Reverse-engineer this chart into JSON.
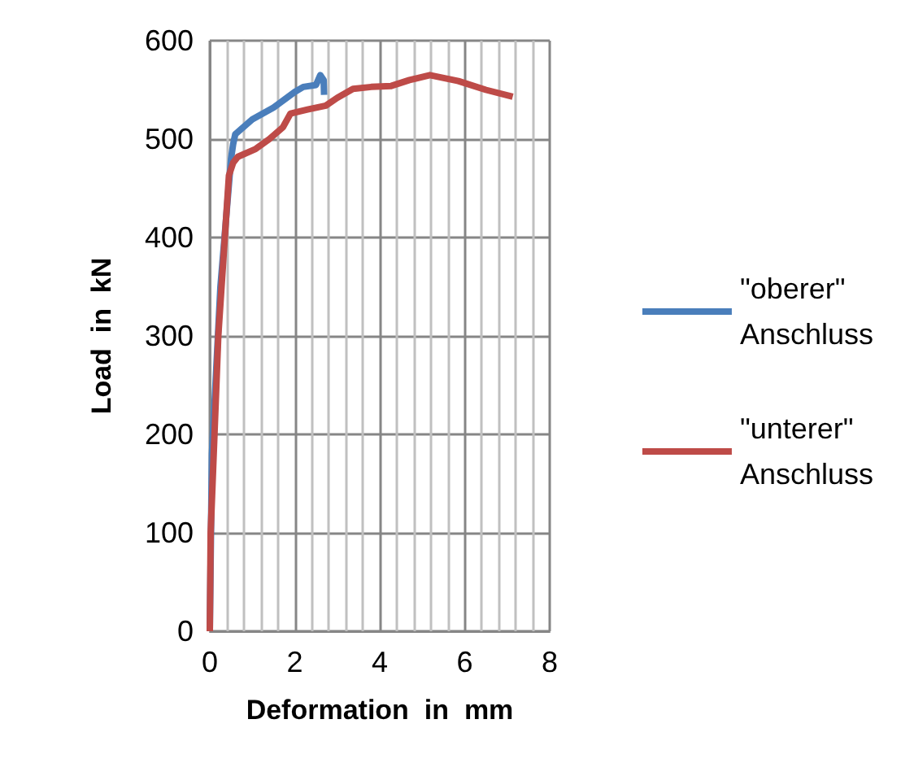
{
  "chart_data": {
    "type": "line",
    "xlabel": "Deformation  in  mm",
    "ylabel": "Load  in  kN",
    "xlim": [
      0,
      8
    ],
    "xticks": [
      0,
      2,
      4,
      6,
      8
    ],
    "ylim": [
      0,
      600
    ],
    "yticks": [
      0,
      100,
      200,
      300,
      400,
      500,
      600
    ],
    "grid": true,
    "legend": "right",
    "marker": "none",
    "line_style": "solid",
    "series": [
      {
        "name": "\"oberer\" Anschluss",
        "color": "#4a7ebb",
        "x": [
          0,
          0.05,
          0.25,
          0.5,
          0.55,
          0.6,
          1.0,
          1.5,
          2.0,
          2.2,
          2.5,
          2.6,
          2.68,
          2.69
        ],
        "values": [
          0,
          180,
          350,
          480,
          495,
          505,
          520,
          532,
          548,
          553,
          555,
          565,
          560,
          545
        ]
      },
      {
        "name": "\"unterer\" Anschluss",
        "color": "#be4b48",
        "x": [
          0,
          0.02,
          0.2,
          0.45,
          0.55,
          0.66,
          1.08,
          1.4,
          1.72,
          1.9,
          2.3,
          2.73,
          3.0,
          3.37,
          3.8,
          4.27,
          4.7,
          5.18,
          5.85,
          6.5,
          7.13
        ],
        "values": [
          0,
          100,
          300,
          463,
          476,
          482,
          490,
          500,
          512,
          526,
          530,
          534,
          542,
          551,
          553,
          554,
          560,
          565,
          559,
          550,
          543
        ]
      }
    ]
  }
}
